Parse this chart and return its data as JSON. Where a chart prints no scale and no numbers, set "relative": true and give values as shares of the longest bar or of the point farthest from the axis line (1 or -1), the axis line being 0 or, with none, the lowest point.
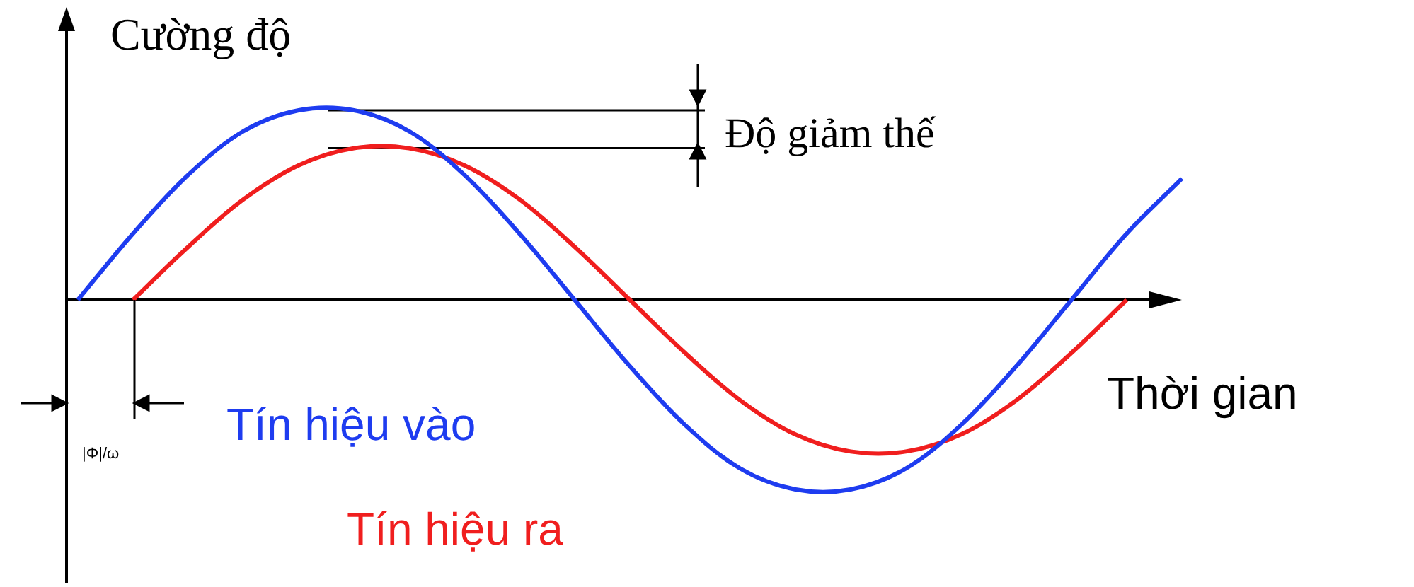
{
  "chart_data": {
    "type": "line",
    "relative": true,
    "ylabel": "Cường độ",
    "xlabel": "Thời gian",
    "categories": [
      null,
      null,
      null,
      null,
      null,
      null,
      null,
      null,
      null,
      null,
      null,
      null,
      null,
      null,
      null,
      null,
      null,
      null,
      null,
      null,
      null
    ],
    "series": [
      {
        "name": "Tín hiệu vào",
        "color": "#1e3cf0",
        "values": [
          0,
          0.35,
          0.66,
          0.89,
          1,
          1,
          0.89,
          0.66,
          0.35,
          0,
          -0.35,
          -0.66,
          -0.89,
          -1,
          -1,
          -0.89,
          -0.66,
          -0.35,
          0,
          0.35,
          0.64
        ]
      },
      {
        "name": "Tín hiệu ra",
        "color": "#f01e1e",
        "values": [
          null,
          0,
          0.28,
          0.53,
          0.71,
          0.8,
          0.8,
          0.71,
          0.53,
          0.28,
          0,
          -0.28,
          -0.53,
          -0.71,
          -0.8,
          -0.8,
          -0.71,
          -0.53,
          -0.28,
          0,
          null
        ]
      }
    ],
    "ref_lines": [
      {
        "axis": "y",
        "value": 1
      },
      {
        "axis": "y",
        "value": 0.8
      }
    ],
    "annotations": [
      "Độ giảm thế",
      "|Φ|/ω"
    ]
  }
}
